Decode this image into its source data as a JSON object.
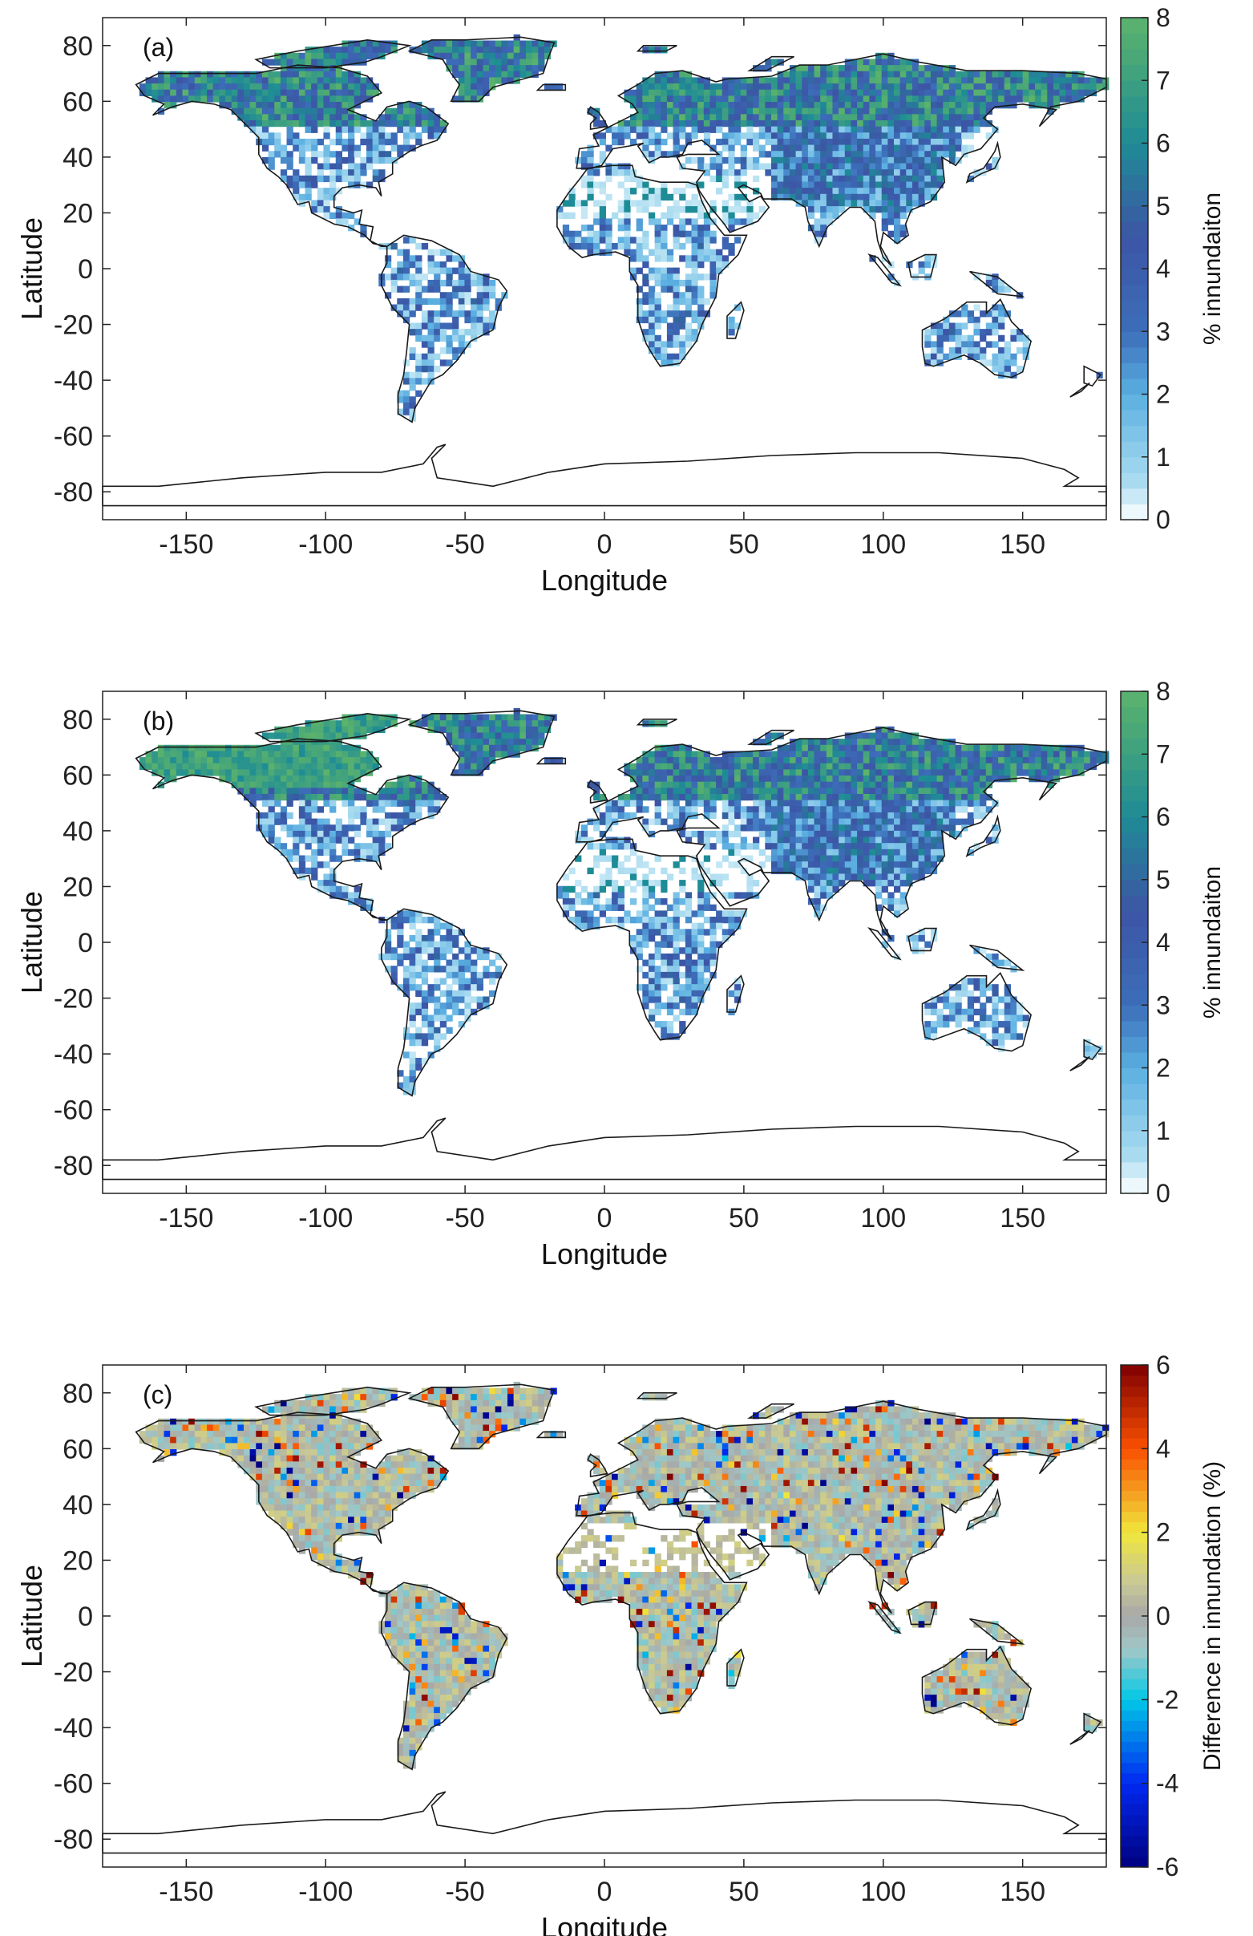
{
  "axes": {
    "xlabel": "Longitude",
    "ylabel": "Latitude",
    "xticks": [
      "-150",
      "-100",
      "-50",
      "0",
      "50",
      "100",
      "150"
    ],
    "xtick_values": [
      -150,
      -100,
      -50,
      0,
      50,
      100,
      150
    ],
    "yticks": [
      "80",
      "60",
      "40",
      "20",
      "0",
      "-20",
      "-40",
      "-60",
      "-80"
    ],
    "ytick_values": [
      80,
      60,
      40,
      20,
      0,
      -20,
      -40,
      -60,
      -80
    ],
    "xlim": [
      -180,
      180
    ],
    "ylim": [
      -90,
      90
    ]
  },
  "panels": [
    {
      "label": "(a)",
      "colorbar": {
        "label": "% innundaiton",
        "ticks": [
          "8",
          "7",
          "6",
          "5",
          "4",
          "3",
          "2",
          "1",
          "0"
        ],
        "tick_values": [
          8,
          7,
          6,
          5,
          4,
          3,
          2,
          1,
          0
        ],
        "range": [
          0,
          8
        ]
      }
    },
    {
      "label": "(b)",
      "colorbar": {
        "label": "% innundaiton",
        "ticks": [
          "8",
          "7",
          "6",
          "5",
          "4",
          "3",
          "2",
          "1",
          "0"
        ],
        "tick_values": [
          8,
          7,
          6,
          5,
          4,
          3,
          2,
          1,
          0
        ],
        "range": [
          0,
          8
        ]
      }
    },
    {
      "label": "(c)",
      "colorbar": {
        "label": "Difference in innundation (%)",
        "ticks": [
          "6",
          "4",
          "2",
          "0",
          "-2",
          "-4",
          "-6"
        ],
        "tick_values": [
          6,
          4,
          2,
          0,
          -2,
          -4,
          -6
        ],
        "range": [
          -6,
          6
        ]
      }
    }
  ],
  "colors": {
    "land_coast": "#1a1a1a",
    "seq_low": "#ffffff",
    "seq_mid": "#3f5fb0",
    "seq_high": "#5cb36b",
    "div_neg": "#00007f",
    "div_zero": "#a8a8a8",
    "div_pos": "#7f0000"
  }
}
